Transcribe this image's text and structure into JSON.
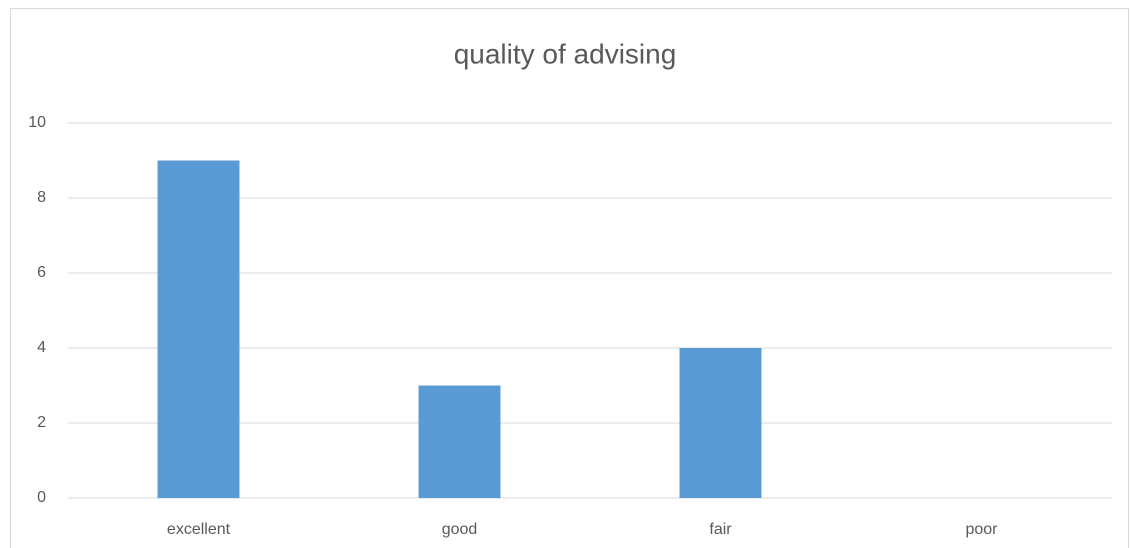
{
  "chart_data": {
    "type": "bar",
    "title": "quality of advising",
    "categories": [
      "excellent",
      "good",
      "fair",
      "poor"
    ],
    "values": [
      9,
      3,
      4,
      0
    ],
    "color": "#5b9bd5",
    "ylim": [
      0,
      10
    ],
    "yticks": [
      0,
      2,
      4,
      6,
      8,
      10
    ],
    "grid": true
  }
}
